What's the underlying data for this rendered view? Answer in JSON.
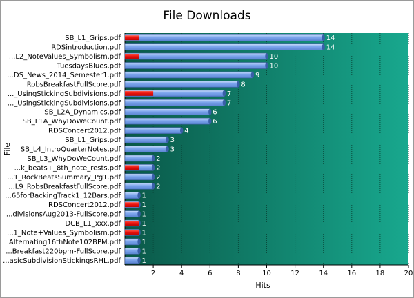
{
  "chart_data": {
    "type": "bar",
    "orientation": "horizontal",
    "title": "File Downloads",
    "xlabel": "Hits",
    "ylabel": "File",
    "xlim": [
      0,
      20
    ],
    "xticks": [
      2,
      4,
      6,
      8,
      10,
      12,
      14,
      16,
      18,
      20
    ],
    "grid": "vertical-dashed",
    "categories": [
      "SB_L1_Grips.pdf",
      "RDSintroduction.pdf",
      "...L2_NoteValues_Symbolism.pdf",
      "TuesdaysBlues.pdf",
      "...DS_News_2014_Semester1.pdf",
      "RobsBreakfastFullScore.pdf",
      "..._UsingStickingSubdivisions.pdf",
      "..._UsingStickingSubdivisions.pdf",
      "SB_L2A_Dynamics.pdf",
      "SB_L1A_WhyDoWeCount.pdf",
      "RDSConcert2012.pdf",
      "SB_L1_Grips.pdf",
      "SB_L4_IntroQuarterNotes.pdf",
      "SB_L3_WhyDoWeCount.pdf",
      "...k_beats+_8th_note_rests.pdf",
      "...1_RockBeatsSummary_Pg1.pdf",
      "...L9_RobsBreakfastFullScore.pdf",
      "...65forBackingTrack1_12Bars.pdf",
      "RDSConcert2012.pdf",
      "...divisionsAug2013-FullScore.pdf",
      "DCB_L1_xxx.pdf",
      "...1_Note+Values_Symbolism.pdf",
      "Alternating16thNote102BPM.pdf",
      "...Breakfast220bpm-FullScore.pdf",
      "...asicSubdivisionStickingsRHL.pdf"
    ],
    "series": [
      {
        "values": [
          14,
          14,
          10,
          10,
          9,
          8,
          7,
          7,
          6,
          6,
          4,
          3,
          3,
          2,
          2,
          2,
          2,
          1,
          1,
          1,
          1,
          1,
          1,
          1,
          1
        ]
      },
      {
        "values": [
          1,
          0,
          1,
          0,
          0,
          0,
          2,
          0,
          0,
          0,
          0,
          0,
          0,
          0,
          1,
          0,
          0,
          0,
          1,
          0,
          1,
          1,
          0,
          0,
          0
        ]
      }
    ],
    "colors": {
      "bar_primary": "#6f9be6",
      "bar_secondary": "#e8100c",
      "plot_gradient_start": "#0a5848",
      "plot_gradient_end": "#18a88e",
      "grid_line": "#0a4a3c",
      "value_label": "#ffffff"
    }
  }
}
